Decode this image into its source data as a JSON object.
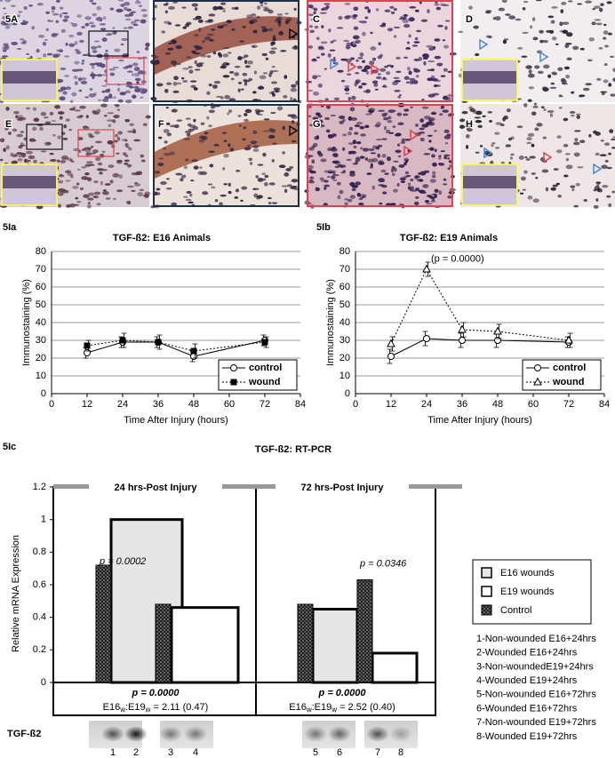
{
  "figure": {
    "panel_labels": [
      "5A",
      "C",
      "D",
      "E",
      "F",
      "G",
      "H"
    ]
  },
  "chart_data": [
    {
      "type": "line",
      "label": "5Ia",
      "title": "TGF-ß2: E16 Animals",
      "xlabel": "Time After Injury (hours)",
      "ylabel": "Immunostaining (%)",
      "xlim": [
        0,
        84
      ],
      "xticks": [
        0,
        12,
        24,
        36,
        48,
        60,
        72,
        84
      ],
      "ylim": [
        0,
        80
      ],
      "yticks": [
        0,
        10,
        20,
        30,
        40,
        50,
        60,
        70,
        80
      ],
      "grid": true,
      "legend": "lower right",
      "x": [
        12,
        24,
        36,
        48,
        72
      ],
      "series": [
        {
          "name": "control",
          "color": "#000000",
          "marker": "o",
          "linestyle": "solid",
          "values": [
            23,
            29,
            29,
            21,
            30
          ],
          "errors": [
            3,
            3,
            3,
            3,
            3
          ]
        },
        {
          "name": "wound",
          "color": "#000000",
          "marker": "s",
          "linestyle": "dotted",
          "values": [
            27,
            30,
            29,
            24,
            29
          ],
          "errors": [
            3,
            4,
            4,
            4,
            3
          ]
        }
      ]
    },
    {
      "type": "line",
      "label": "5Ib",
      "title": "TGF-ß2: E19 Animals",
      "xlabel": "Time After Injury (hours)",
      "ylabel": "Immunostaining (%)",
      "annotation": "(p = 0.0000)",
      "xlim": [
        0,
        84
      ],
      "xticks": [
        0,
        12,
        24,
        36,
        48,
        60,
        72,
        84
      ],
      "ylim": [
        0,
        80
      ],
      "yticks": [
        0,
        10,
        20,
        30,
        40,
        50,
        60,
        70,
        80
      ],
      "grid": true,
      "legend": "lower right",
      "x": [
        12,
        24,
        36,
        48,
        72
      ],
      "series": [
        {
          "name": "control",
          "color": "#000000",
          "marker": "o",
          "linestyle": "solid",
          "values": [
            21,
            31,
            30,
            30,
            29
          ],
          "errors": [
            4,
            4,
            4,
            4,
            3
          ]
        },
        {
          "name": "wound",
          "color": "#000000",
          "marker": "^",
          "linestyle": "dotted",
          "values": [
            28,
            70,
            36,
            35,
            30
          ],
          "errors": [
            4,
            4,
            4,
            4,
            4
          ]
        }
      ]
    },
    {
      "type": "bar",
      "label": "5Ic",
      "title": "TGF-ß2: RT-PCR",
      "ylabel": "Relative mRNA Expression",
      "ylim": [
        0,
        1.2
      ],
      "yticks": [
        0,
        0.2,
        0.4,
        0.6,
        0.8,
        1,
        1.2
      ],
      "groups": [
        "24 hrs-Post Injury",
        "72 hrs-Post Injury"
      ],
      "categories": [
        "1",
        "2",
        "3",
        "4",
        "5",
        "6",
        "7",
        "8"
      ],
      "series": [
        {
          "name": "E16 wounds",
          "color": "#e6e6e6",
          "values": [
            null,
            1.0,
            null,
            null,
            null,
            0.45,
            null,
            null
          ]
        },
        {
          "name": "E19 wounds",
          "color": "#ffffff",
          "values": [
            null,
            null,
            null,
            0.46,
            null,
            null,
            null,
            0.18
          ]
        },
        {
          "name": "Control",
          "color": "#333333",
          "values": [
            0.72,
            null,
            0.48,
            null,
            0.48,
            null,
            0.63,
            null
          ]
        }
      ],
      "p_labels": [
        "p = 0.0002",
        "p = 0.0346"
      ],
      "group_p": [
        "p = 0.0000",
        "p = 0.0000"
      ],
      "group_ratio": [
        [
          "E16",
          "w",
          ":E19",
          "w",
          " = 2.11 (0.47)"
        ],
        [
          "E16",
          "w",
          ":E19",
          "w",
          " = 2.52 (0.40)"
        ]
      ],
      "legend": "right"
    }
  ],
  "gel": {
    "label": "TGF-ß2"
  },
  "lane_key": [
    "1-Non-wounded E16+24hrs",
    "2-Wounded E16+24hrs",
    "3-Non-woundedE19+24hrs",
    "4-Wounded E19+24hrs",
    "5-Non-wounded E16+72hrs",
    "6-Wounded E16+72hrs",
    "7-Non-wounded E19+72hrs",
    "8-Wounded E19+72hrs"
  ]
}
